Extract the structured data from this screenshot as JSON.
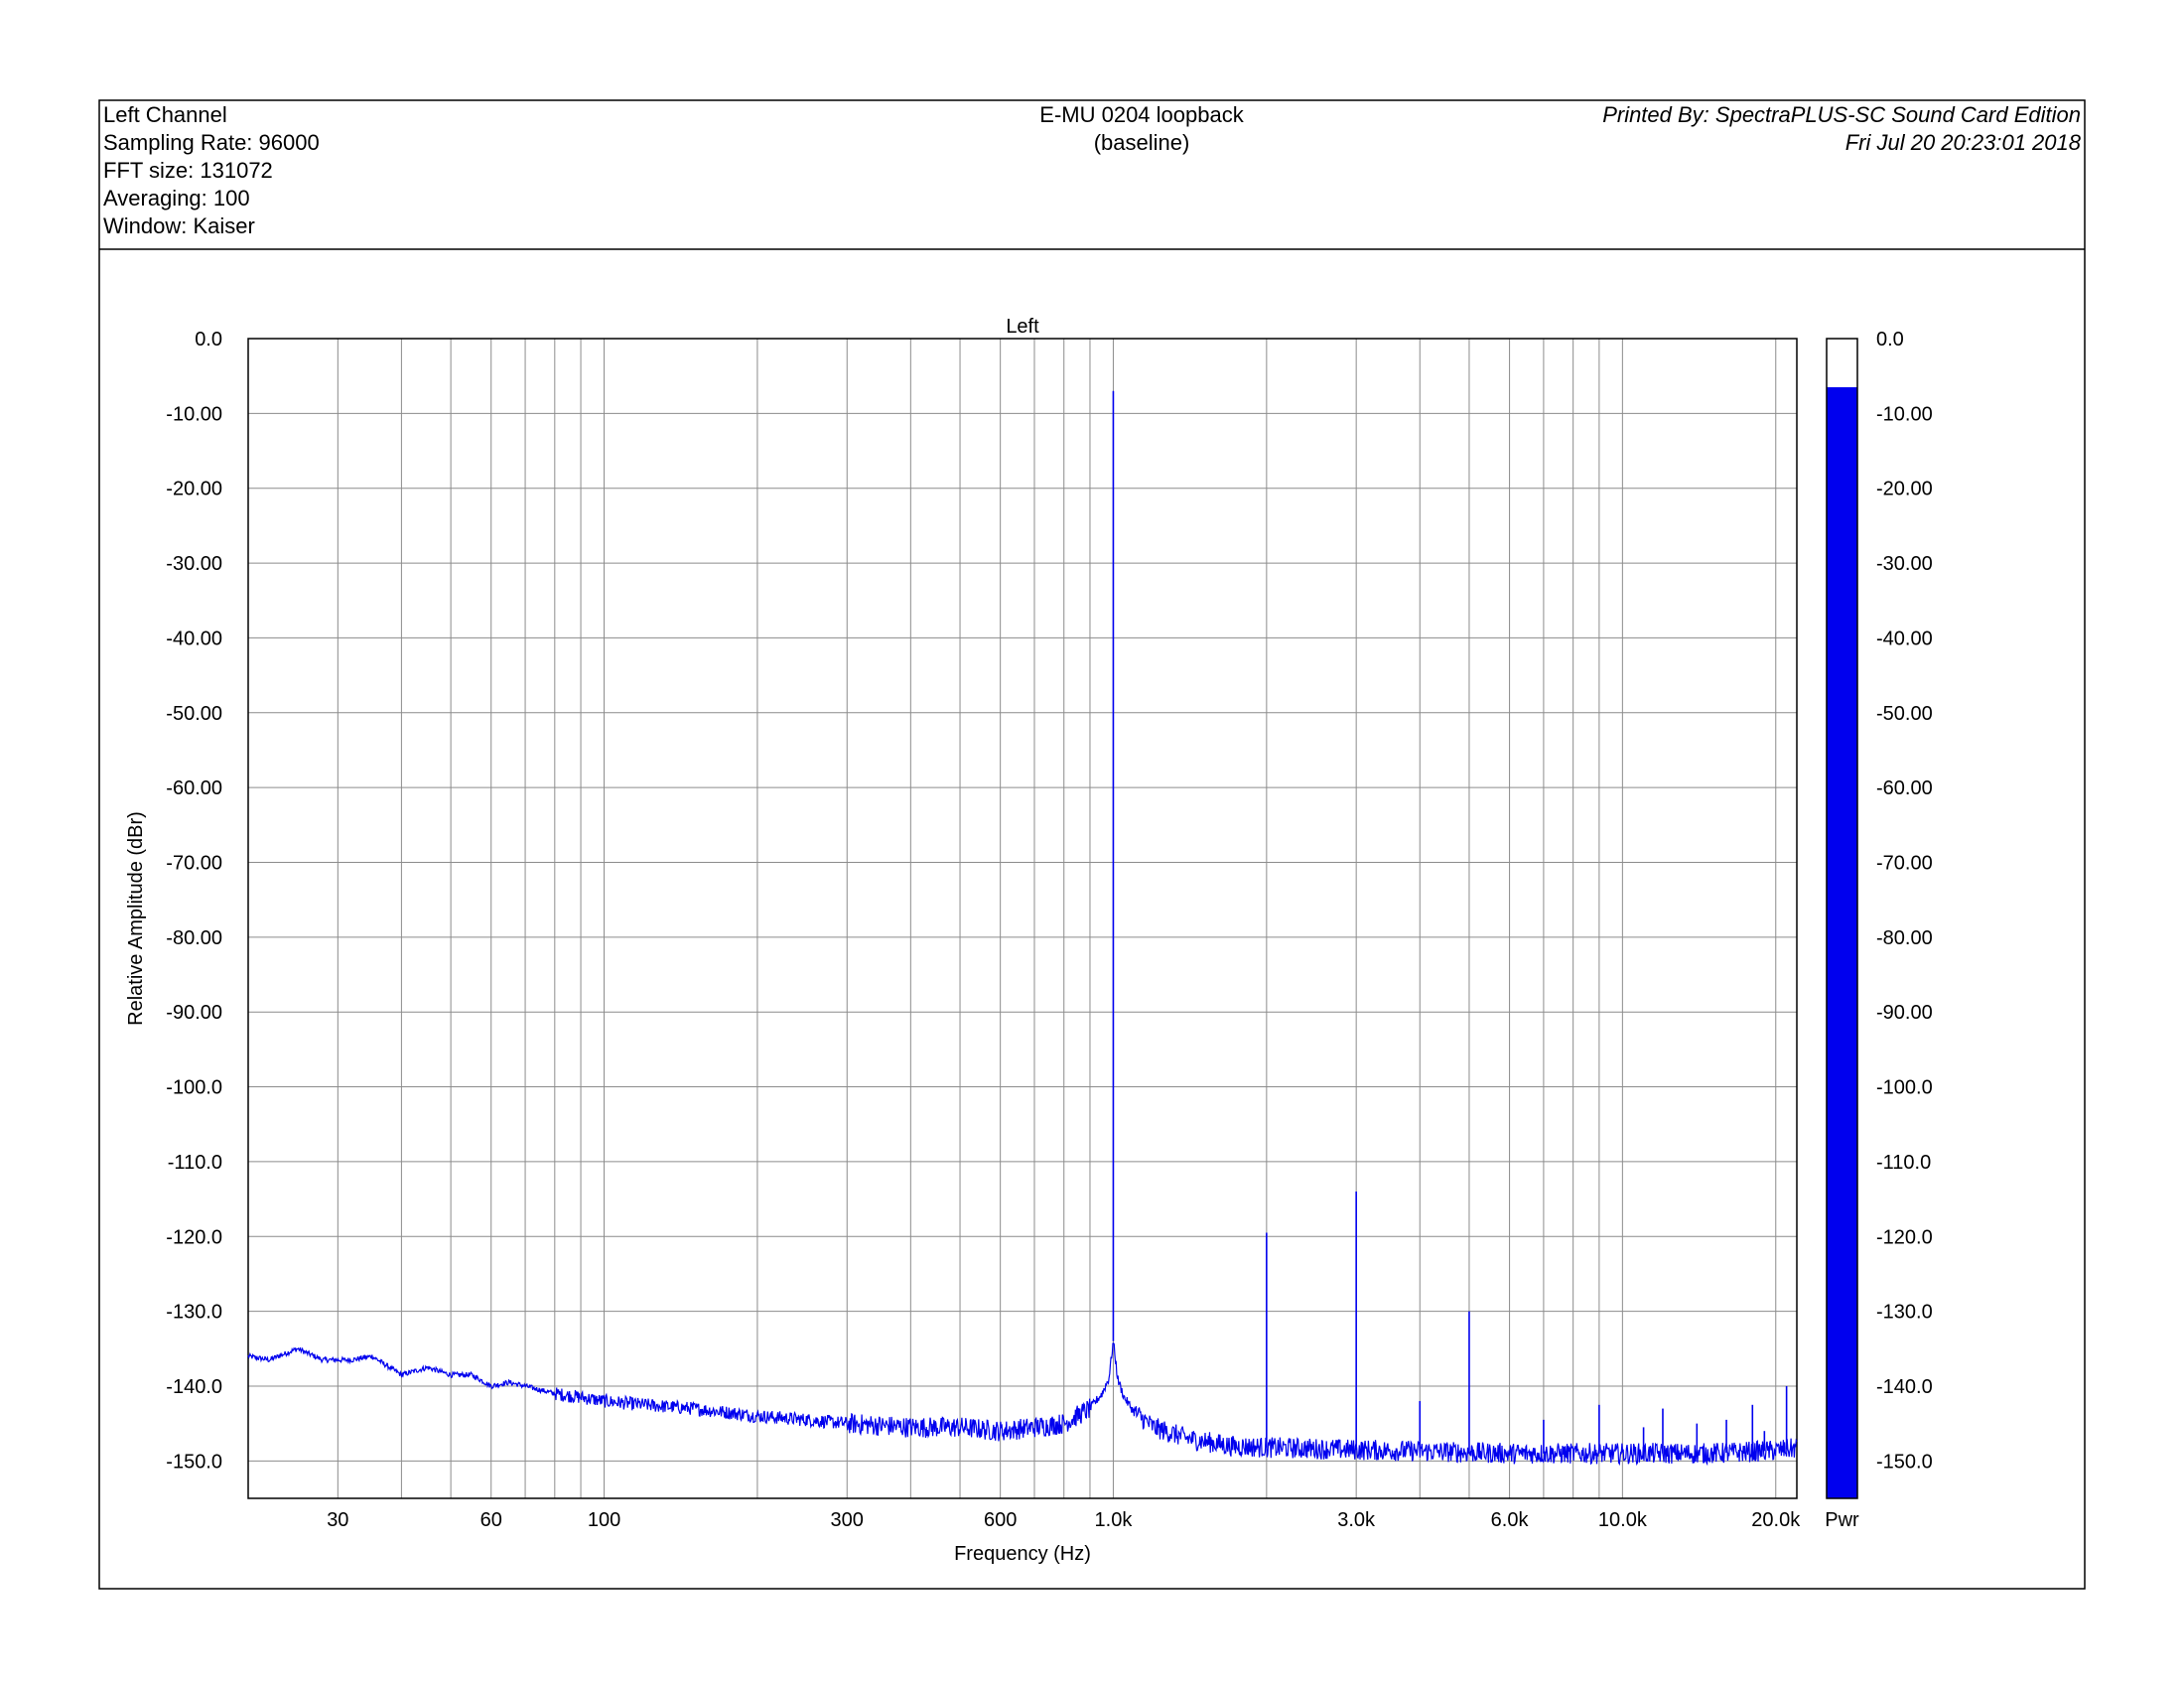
{
  "header": {
    "info_lines": [
      "Left Channel",
      "Sampling Rate: 96000",
      "FFT size: 131072",
      "Averaging: 100",
      "Window: Kaiser"
    ],
    "title_line1": "E-MU 0204 loopback",
    "title_line2": "(baseline)",
    "printed_by": "Printed By: SpectraPLUS-SC Sound Card Edition",
    "timestamp": "Fri Jul 20 20:23:01 2018"
  },
  "chart_data": {
    "type": "line",
    "title": "Left",
    "xlabel": "Frequency (Hz)",
    "ylabel": "Relative Amplitude (dBr)",
    "x_scale": "log",
    "xlim": [
      20,
      22000
    ],
    "ylim": [
      -155,
      0
    ],
    "grid": true,
    "line_color": "#0000ee",
    "x_tick_labels": [
      {
        "value": 30,
        "label": "30"
      },
      {
        "value": 60,
        "label": "60"
      },
      {
        "value": 100,
        "label": "100"
      },
      {
        "value": 300,
        "label": "300"
      },
      {
        "value": 600,
        "label": "600"
      },
      {
        "value": 1000,
        "label": "1.0k"
      },
      {
        "value": 3000,
        "label": "3.0k"
      },
      {
        "value": 6000,
        "label": "6.0k"
      },
      {
        "value": 10000,
        "label": "10.0k"
      },
      {
        "value": 20000,
        "label": "20.0k"
      }
    ],
    "y_ticks": [
      0,
      -10,
      -20,
      -30,
      -40,
      -50,
      -60,
      -70,
      -80,
      -90,
      -100,
      -110,
      -120,
      -130,
      -140,
      -150
    ],
    "y_tick_labels": [
      "0.0",
      "-10.00",
      "-20.00",
      "-30.00",
      "-40.00",
      "-50.00",
      "-60.00",
      "-70.00",
      "-80.00",
      "-90.00",
      "-100.0",
      "-110.0",
      "-120.0",
      "-130.0",
      "-140.0",
      "-150.0"
    ],
    "noise_floor": [
      [
        20,
        -136
      ],
      [
        22,
        -136.5
      ],
      [
        25,
        -135
      ],
      [
        28,
        -136.5
      ],
      [
        32,
        -136.5
      ],
      [
        35,
        -136
      ],
      [
        40,
        -138.5
      ],
      [
        45,
        -137.5
      ],
      [
        50,
        -138.5
      ],
      [
        55,
        -138.5
      ],
      [
        60,
        -140
      ],
      [
        65,
        -139.5
      ],
      [
        70,
        -140
      ],
      [
        80,
        -141
      ],
      [
        90,
        -141.5
      ],
      [
        100,
        -142
      ],
      [
        120,
        -142.5
      ],
      [
        150,
        -143
      ],
      [
        200,
        -144
      ],
      [
        250,
        -144.5
      ],
      [
        300,
        -145
      ],
      [
        400,
        -145.5
      ],
      [
        500,
        -145.5
      ],
      [
        600,
        -146
      ],
      [
        700,
        -145.5
      ],
      [
        800,
        -145
      ],
      [
        900,
        -143
      ],
      [
        950,
        -141
      ],
      [
        980,
        -139
      ],
      [
        1000,
        -134
      ],
      [
        1020,
        -139
      ],
      [
        1050,
        -141.5
      ],
      [
        1100,
        -143.5
      ],
      [
        1200,
        -145.5
      ],
      [
        1400,
        -147
      ],
      [
        1700,
        -148
      ],
      [
        2000,
        -148.2
      ],
      [
        3000,
        -148.5
      ],
      [
        4000,
        -148.7
      ],
      [
        6000,
        -149
      ],
      [
        10000,
        -149
      ],
      [
        15000,
        -149
      ],
      [
        20000,
        -148.6
      ],
      [
        22000,
        -148.3
      ]
    ],
    "peaks": [
      {
        "freq": 1000,
        "value": -7
      },
      {
        "freq": 2000,
        "value": -119.5
      },
      {
        "freq": 3000,
        "value": -114
      },
      {
        "freq": 4000,
        "value": -142
      },
      {
        "freq": 5000,
        "value": -130
      },
      {
        "freq": 7000,
        "value": -144.5
      },
      {
        "freq": 9000,
        "value": -142.5
      },
      {
        "freq": 11000,
        "value": -145.5
      },
      {
        "freq": 12000,
        "value": -143
      },
      {
        "freq": 14000,
        "value": -145
      },
      {
        "freq": 16000,
        "value": -144.5
      },
      {
        "freq": 18000,
        "value": -142.5
      },
      {
        "freq": 19000,
        "value": -146
      },
      {
        "freq": 21000,
        "value": -140
      }
    ],
    "meter": {
      "label": "Pwr",
      "value": -6.5,
      "ylim": [
        -155,
        0
      ],
      "tick_labels": [
        "0.0",
        "-10.00",
        "-20.00",
        "-30.00",
        "-40.00",
        "-50.00",
        "-60.00",
        "-70.00",
        "-80.00",
        "-90.00",
        "-100.0",
        "-110.0",
        "-120.0",
        "-130.0",
        "-140.0",
        "-150.0"
      ]
    }
  }
}
